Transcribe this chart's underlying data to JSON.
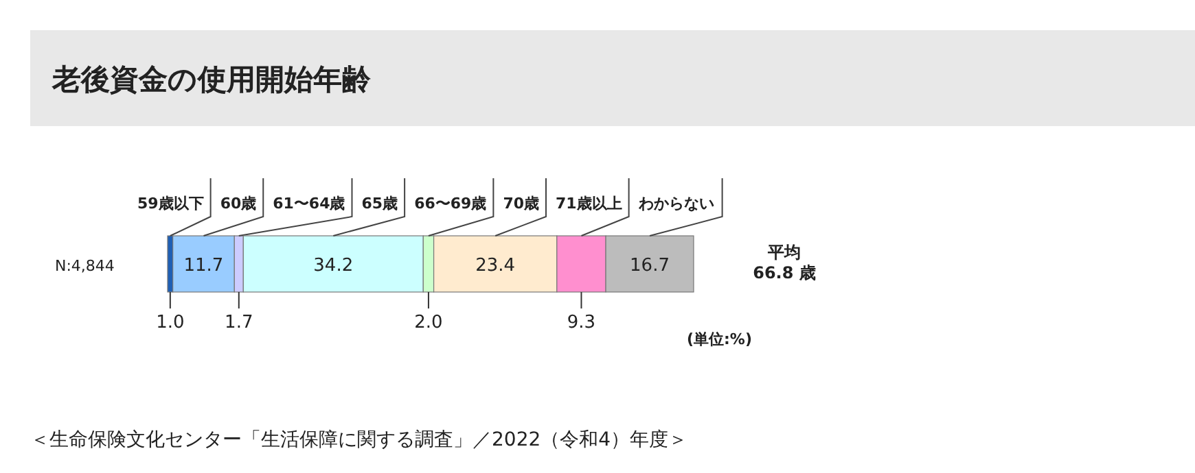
{
  "chart_data": {
    "type": "bar",
    "orientation": "horizontal",
    "stacked": true,
    "title": "老後資金の使用開始年齢",
    "categories": [
      "N:4,844"
    ],
    "xlim": [
      0,
      100
    ],
    "series": [
      {
        "name": "59歳以下",
        "color": "#1f5fb4",
        "values": [
          1.0
        ],
        "value_labels": [
          "1.0"
        ]
      },
      {
        "name": "60歳",
        "color": "#99ccff",
        "values": [
          11.7
        ],
        "value_labels": [
          "11.7"
        ]
      },
      {
        "name": "61〜64歳",
        "color": "#ccccff",
        "values": [
          1.7
        ],
        "value_labels": [
          "1.7"
        ]
      },
      {
        "name": "65歳",
        "color": "#ccffff",
        "values": [
          34.2
        ],
        "value_labels": [
          "34.2"
        ]
      },
      {
        "name": "66〜69歳",
        "color": "#ccffcc",
        "values": [
          2.0
        ],
        "value_labels": [
          "2.0"
        ]
      },
      {
        "name": "70歳",
        "color": "#ffebcf",
        "values": [
          23.4
        ],
        "value_labels": [
          "23.4"
        ]
      },
      {
        "name": "71歳以上",
        "color": "#ff8fcf",
        "values": [
          9.3
        ],
        "value_labels": [
          "9.3"
        ]
      },
      {
        "name": "わからない",
        "color": "#bcbcbc",
        "values": [
          16.7
        ],
        "value_labels": [
          "16.7"
        ]
      }
    ],
    "annotations": [
      "平均",
      "66.8 歳",
      "(単位:%)",
      "＜生命保険文化センター「生活保障に関する調査」／2022（令和4）年度＞"
    ]
  }
}
